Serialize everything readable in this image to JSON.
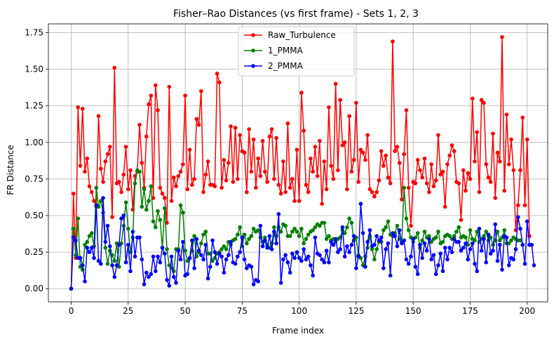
{
  "chart_data": {
    "type": "line",
    "title": "Fisher–Rao Distances (vs first frame) - Sets 1, 2, 3",
    "xlabel": "Frame index",
    "ylabel": "FR Distance",
    "xlim": [
      -10,
      209
    ],
    "ylim": [
      -0.09,
      1.81
    ],
    "xticks": [
      0,
      25,
      50,
      75,
      100,
      125,
      150,
      175,
      200
    ],
    "yticks": [
      0.0,
      0.25,
      0.5,
      0.75,
      1.0,
      1.25,
      1.5,
      1.75
    ],
    "ytick_labels": [
      "0.00",
      "0.25",
      "0.50",
      "0.75",
      "1.00",
      "1.25",
      "1.50",
      "1.75"
    ],
    "grid": true,
    "legend_position": "top-center",
    "series": [
      {
        "name": "Raw_Turbulence",
        "color": "#ff0000",
        "x_start": 0,
        "values": [
          0.0,
          0.65,
          0.21,
          1.24,
          0.84,
          1.23,
          0.8,
          0.89,
          0.7,
          0.66,
          0.6,
          0.56,
          1.18,
          0.82,
          0.73,
          0.87,
          0.92,
          0.97,
          0.49,
          1.51,
          0.72,
          0.73,
          0.66,
          0.78,
          0.97,
          0.68,
          0.81,
          0.54,
          0.77,
          0.8,
          1.12,
          0.86,
          0.69,
          1.04,
          1.26,
          1.32,
          0.62,
          1.39,
          1.22,
          0.69,
          0.65,
          0.62,
          0.45,
          1.38,
          0.6,
          0.76,
          0.7,
          0.77,
          0.8,
          0.85,
          1.32,
          0.68,
          0.95,
          0.71,
          0.75,
          1.16,
          1.12,
          1.35,
          0.66,
          0.78,
          0.87,
          0.71,
          0.71,
          0.7,
          1.47,
          1.41,
          0.69,
          0.88,
          0.74,
          0.86,
          1.11,
          0.73,
          1.1,
          0.75,
          1.05,
          0.94,
          0.93,
          0.66,
          1.09,
          0.8,
          1.02,
          0.69,
          0.89,
          0.77,
          1.01,
          0.8,
          0.73,
          1.04,
          1.09,
          0.75,
          1.03,
          0.71,
          0.65,
          0.87,
          0.66,
          1.13,
          0.69,
          0.75,
          0.6,
          0.95,
          0.6,
          1.34,
          1.08,
          0.71,
          0.66,
          0.89,
          0.8,
          0.97,
          0.77,
          1.01,
          0.58,
          0.87,
          0.68,
          1.24,
          0.84,
          0.75,
          1.4,
          0.81,
          1.29,
          0.98,
          1.0,
          0.68,
          1.18,
          0.8,
          0.88,
          1.27,
          0.73,
          0.95,
          0.93,
          0.88,
          1.05,
          0.68,
          0.66,
          0.63,
          0.66,
          0.74,
          0.94,
          0.84,
          0.91,
          0.76,
          0.72,
          1.69,
          0.94,
          0.97,
          0.86,
          0.61,
          0.92,
          1.22,
          0.69,
          0.43,
          0.73,
          0.72,
          0.88,
          0.81,
          0.76,
          0.89,
          0.72,
          0.66,
          0.85,
          0.7,
          0.74,
          1.05,
          0.78,
          0.8,
          0.56,
          0.85,
          0.91,
          0.98,
          0.94,
          0.73,
          0.72,
          0.47,
          0.81,
          0.67,
          0.79,
          0.75,
          1.3,
          0.87,
          1.07,
          0.66,
          1.29,
          1.27,
          0.85,
          0.76,
          0.73,
          1.06,
          0.62,
          0.93,
          0.87,
          1.72,
          0.67,
          1.19,
          0.85,
          1.02,
          0.81,
          0.4,
          0.57,
          0.81,
          1.17,
          0.57,
          1.02,
          0.36
        ]
      },
      {
        "name": "1_PMMA",
        "color": "#008000",
        "x_start": 0,
        "values": [
          0.0,
          0.41,
          0.23,
          0.48,
          0.15,
          0.13,
          0.3,
          0.32,
          0.36,
          0.38,
          0.29,
          0.69,
          0.56,
          0.6,
          0.52,
          0.28,
          0.17,
          0.26,
          0.23,
          0.19,
          0.31,
          0.15,
          0.31,
          0.43,
          0.59,
          0.41,
          0.25,
          0.35,
          0.72,
          0.81,
          0.8,
          0.56,
          0.68,
          0.54,
          0.6,
          0.7,
          0.46,
          0.42,
          0.53,
          0.47,
          0.28,
          0.55,
          0.27,
          0.16,
          0.14,
          0.12,
          0.27,
          0.27,
          0.57,
          0.52,
          0.26,
          0.19,
          0.21,
          0.26,
          0.36,
          0.22,
          0.25,
          0.31,
          0.37,
          0.39,
          0.24,
          0.24,
          0.19,
          0.21,
          0.24,
          0.25,
          0.27,
          0.29,
          0.27,
          0.32,
          0.3,
          0.33,
          0.34,
          0.37,
          0.42,
          0.29,
          0.37,
          0.31,
          0.34,
          0.36,
          0.41,
          0.39,
          0.4,
          0.35,
          0.32,
          0.35,
          0.3,
          0.28,
          0.31,
          0.42,
          0.36,
          0.42,
          0.39,
          0.44,
          0.43,
          0.36,
          0.36,
          0.39,
          0.41,
          0.39,
          0.36,
          0.41,
          0.31,
          0.34,
          0.37,
          0.39,
          0.4,
          0.42,
          0.44,
          0.43,
          0.45,
          0.45,
          0.34,
          0.36,
          0.33,
          0.34,
          0.32,
          0.34,
          0.35,
          0.4,
          0.38,
          0.42,
          0.48,
          0.45,
          0.33,
          0.35,
          0.23,
          0.21,
          0.16,
          0.22,
          0.28,
          0.36,
          0.27,
          0.2,
          0.27,
          0.32,
          0.32,
          0.4,
          0.42,
          0.46,
          0.37,
          0.36,
          0.38,
          0.43,
          0.34,
          0.32,
          0.69,
          0.48,
          0.4,
          0.35,
          0.32,
          0.35,
          0.38,
          0.28,
          0.33,
          0.39,
          0.35,
          0.36,
          0.32,
          0.34,
          0.35,
          0.39,
          0.31,
          0.32,
          0.36,
          0.37,
          0.36,
          0.34,
          0.36,
          0.39,
          0.42,
          0.35,
          0.36,
          0.35,
          0.3,
          0.4,
          0.34,
          0.33,
          0.39,
          0.32,
          0.34,
          0.36,
          0.39,
          0.33,
          0.35,
          0.3,
          0.33,
          0.39,
          0.33,
          0.35,
          0.4,
          0.31,
          0.31,
          0.33,
          0.35,
          0.34,
          0.33,
          0.33
        ]
      },
      {
        "name": "2_PMMA",
        "color": "#0000ff",
        "x_start": 0,
        "values": [
          0.0,
          0.35,
          0.33,
          0.21,
          0.21,
          0.16,
          0.05,
          0.28,
          0.25,
          0.28,
          0.21,
          0.57,
          0.19,
          0.17,
          0.62,
          0.32,
          0.43,
          0.29,
          0.16,
          0.08,
          0.16,
          0.3,
          0.48,
          0.5,
          0.18,
          0.3,
          0.12,
          0.39,
          0.22,
          0.35,
          0.35,
          0.2,
          0.03,
          0.11,
          0.08,
          0.1,
          0.22,
          0.12,
          0.22,
          0.18,
          0.28,
          0.24,
          0.06,
          0.02,
          0.22,
          0.08,
          0.04,
          0.26,
          0.2,
          0.32,
          0.09,
          0.1,
          0.21,
          0.33,
          0.14,
          0.34,
          0.26,
          0.23,
          0.2,
          0.3,
          0.07,
          0.15,
          0.33,
          0.25,
          0.17,
          0.24,
          0.22,
          0.11,
          0.2,
          0.23,
          0.32,
          0.18,
          0.17,
          0.22,
          0.25,
          0.35,
          0.2,
          0.14,
          0.16,
          0.15,
          0.03,
          0.06,
          0.05,
          0.43,
          0.29,
          0.33,
          0.28,
          0.36,
          0.27,
          0.39,
          0.31,
          0.51,
          0.04,
          0.2,
          0.23,
          0.18,
          0.11,
          0.24,
          0.21,
          0.25,
          0.21,
          0.19,
          0.27,
          0.2,
          0.22,
          0.16,
          0.09,
          0.35,
          0.24,
          0.23,
          0.2,
          0.18,
          0.26,
          0.18,
          0.32,
          0.3,
          0.34,
          0.25,
          0.27,
          0.42,
          0.22,
          0.29,
          0.25,
          0.3,
          0.36,
          0.14,
          0.22,
          0.58,
          0.38,
          0.15,
          0.32,
          0.4,
          0.29,
          0.3,
          0.36,
          0.33,
          0.35,
          0.14,
          0.27,
          0.31,
          0.09,
          0.38,
          0.36,
          0.29,
          0.4,
          0.31,
          0.33,
          0.2,
          0.17,
          0.22,
          0.34,
          0.15,
          0.1,
          0.3,
          0.21,
          0.31,
          0.26,
          0.34,
          0.2,
          0.23,
          0.1,
          0.16,
          0.24,
          0.12,
          0.28,
          0.2,
          0.28,
          0.25,
          0.34,
          0.32,
          0.32,
          0.26,
          0.28,
          0.31,
          0.2,
          0.27,
          0.31,
          0.17,
          0.12,
          0.41,
          0.26,
          0.34,
          0.18,
          0.37,
          0.24,
          0.26,
          0.44,
          0.19,
          0.3,
          0.13,
          0.36,
          0.35,
          0.16,
          0.21,
          0.2,
          0.27,
          0.49,
          0.41,
          0.3,
          0.17,
          0.46,
          0.3,
          0.3,
          0.16
        ]
      }
    ]
  }
}
